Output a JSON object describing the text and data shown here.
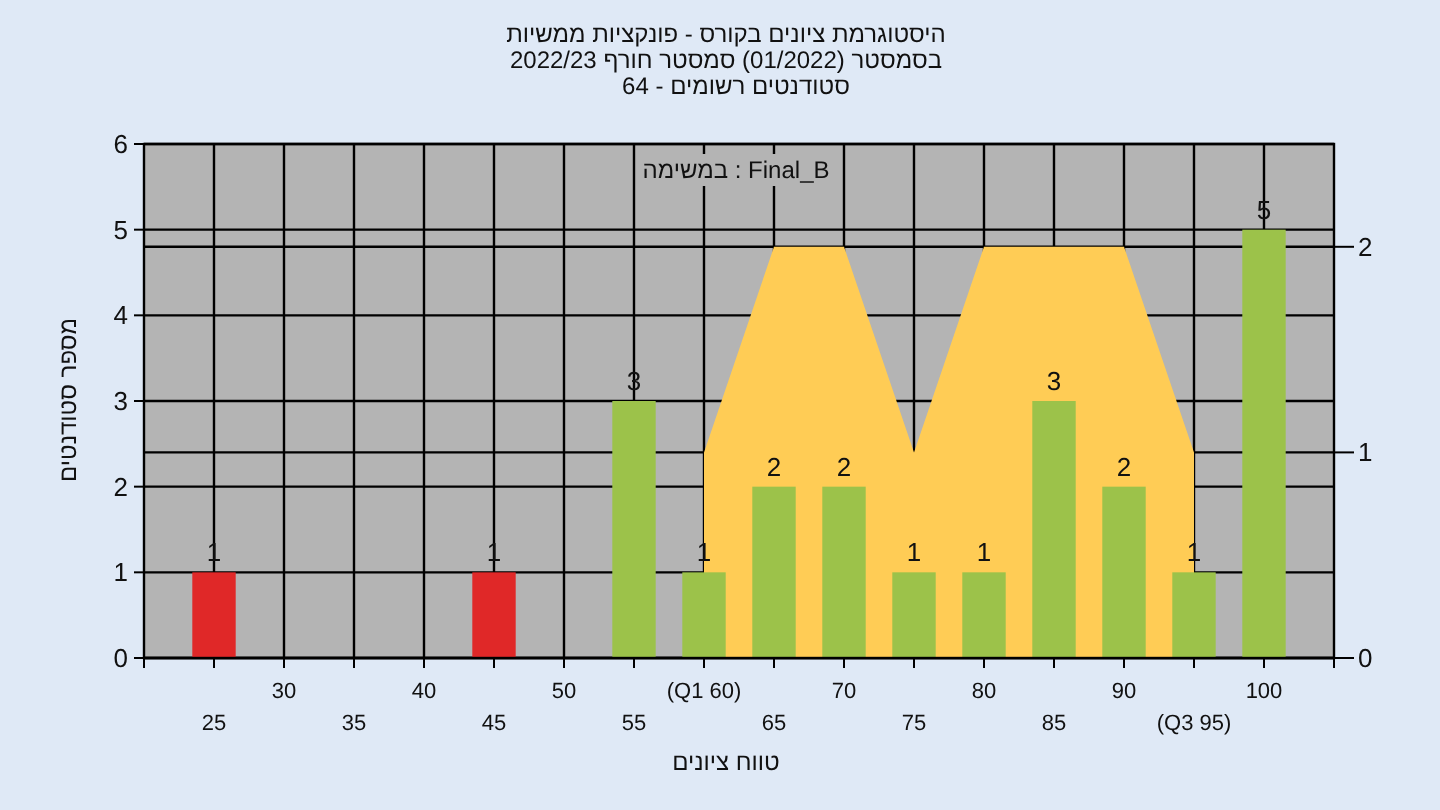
{
  "chart_data": {
    "type": "bar",
    "title": "היסטוגרמת ציונים בקורס - פונקציות ממשיות",
    "subtitle": "בסמסטר (01/2022) סמסטר חורף 2022/23",
    "annotations": [
      "סטודנטים רשומים - 64",
      "Final_B : במשימה"
    ],
    "xlabel": "טווח ציונים",
    "ylabel": "מספר סטודנטים",
    "categories": [
      "25",
      "30",
      "35",
      "40",
      "45",
      "50",
      "55",
      "(Q1 60)",
      "65",
      "70",
      "75",
      "80",
      "85",
      "90",
      "(Q3 95)",
      "100"
    ],
    "series": [
      {
        "values": [
          1,
          null,
          null,
          null,
          1,
          null,
          3,
          1,
          2,
          2,
          1,
          1,
          3,
          2,
          1,
          5
        ],
        "colors": [
          "#e02828",
          null,
          null,
          null,
          "#e02828",
          null,
          "#9cc24a",
          "#9cc24a",
          "#9cc24a",
          "#9cc24a",
          "#9cc24a",
          "#9cc24a",
          "#9cc24a",
          "#9cc24a",
          "#9cc24a",
          "#9cc24a"
        ],
        "value_labels": [
          "1",
          null,
          null,
          null,
          "1",
          null,
          "3",
          "1",
          "2",
          "2",
          "1",
          "1",
          "3",
          "2",
          "1",
          "5"
        ]
      },
      {
        "type": "area",
        "axis": "y2",
        "color": "#ffcc55",
        "values": [
          null,
          null,
          null,
          null,
          null,
          null,
          null,
          1,
          2,
          2,
          1,
          2,
          2,
          2,
          1,
          null
        ]
      }
    ],
    "ylim": [
      0,
      6
    ],
    "yticks": [
      0,
      1,
      2,
      3,
      4,
      5,
      6
    ],
    "y2lim": [
      0,
      2.5
    ],
    "y2ticks": [
      0,
      1,
      2
    ],
    "grid": true
  }
}
